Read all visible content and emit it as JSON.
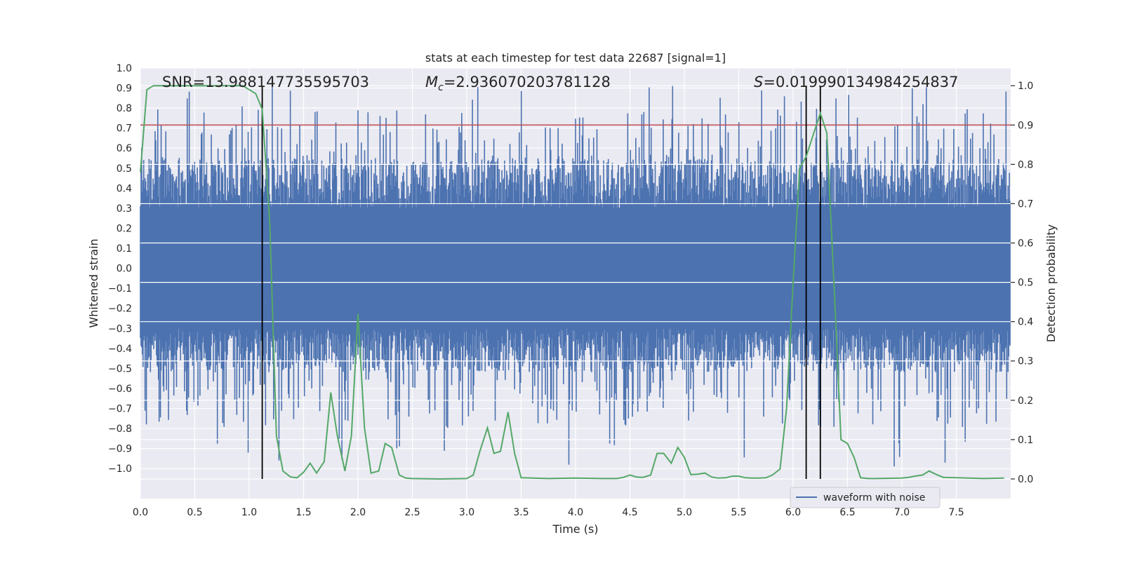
{
  "chart_data": {
    "type": "line",
    "title": "stats at each timestep for test data 22687 [signal=1]",
    "xlabel": "Time (s)",
    "ylabel_left": "Whitened strain",
    "ylabel_right": "Detection probability",
    "xlim": [
      0,
      8.0
    ],
    "ylim_left": [
      -1.15,
      1.0
    ],
    "ylim_right": [
      -0.05,
      1.045
    ],
    "x_ticks": [
      "0.0",
      "0.5",
      "1.0",
      "1.5",
      "2.0",
      "2.5",
      "3.0",
      "3.5",
      "4.0",
      "4.5",
      "5.0",
      "5.5",
      "6.0",
      "6.5",
      "7.0",
      "7.5"
    ],
    "y_left_ticks": [
      "1.0",
      "0.9",
      "0.8",
      "0.7",
      "0.6",
      "0.5",
      "0.4",
      "0.3",
      "0.2",
      "0.1",
      "0.0",
      "−0.1",
      "−0.2",
      "−0.3",
      "−0.4",
      "−0.5",
      "−0.6",
      "−0.7",
      "−0.8",
      "−0.9",
      "−1.0"
    ],
    "y_right_ticks": [
      "0.0",
      "0.1",
      "0.2",
      "0.3",
      "0.4",
      "0.5",
      "0.6",
      "0.7",
      "0.8",
      "0.9",
      "1.0"
    ],
    "annotations": {
      "snr": "SNR=13.988147735595703",
      "mc_symbol": "M",
      "mc_sub": "c",
      "mc_value": "=2.936070203781128",
      "s_symbol": "S",
      "s_value": "=0.019990134984254837"
    },
    "threshold": 0.9,
    "vertical_lines": [
      1.12,
      6.12,
      6.25
    ],
    "legend": [
      "waveform with noise"
    ],
    "series": [
      {
        "name": "waveform with noise",
        "color": "#4c72b0",
        "note": "dense noisy strain time series, amplitude envelope approx +/-0.5 with spikes to +/-1.0"
      },
      {
        "name": "detection probability",
        "color": "#55a868",
        "x": [
          0.0,
          0.06,
          0.12,
          0.19,
          0.25,
          0.31,
          0.38,
          0.44,
          0.5,
          0.56,
          0.62,
          0.69,
          0.75,
          0.81,
          0.88,
          0.94,
          1.0,
          1.06,
          1.12,
          1.19,
          1.25,
          1.31,
          1.38,
          1.44,
          1.5,
          1.56,
          1.62,
          1.69,
          1.75,
          1.81,
          1.88,
          1.94,
          2.0,
          2.06,
          2.12,
          2.19,
          2.25,
          2.31,
          2.38,
          2.44,
          2.5,
          2.75,
          3.0,
          3.06,
          3.12,
          3.19,
          3.25,
          3.31,
          3.38,
          3.44,
          3.5,
          3.75,
          4.0,
          4.25,
          4.38,
          4.44,
          4.5,
          4.56,
          4.62,
          4.69,
          4.75,
          4.81,
          4.88,
          4.94,
          5.0,
          5.06,
          5.12,
          5.19,
          5.25,
          5.31,
          5.38,
          5.44,
          5.5,
          5.56,
          5.62,
          5.69,
          5.75,
          5.81,
          5.88,
          5.94,
          6.0,
          6.06,
          6.12,
          6.19,
          6.25,
          6.31,
          6.38,
          6.44,
          6.5,
          6.56,
          6.62,
          6.69,
          6.75,
          7.0,
          7.06,
          7.12,
          7.19,
          7.25,
          7.31,
          7.38,
          7.5,
          7.75,
          7.94
        ],
        "values": [
          0.78,
          0.99,
          1.0,
          1.0,
          1.0,
          1.0,
          1.0,
          1.0,
          1.0,
          1.0,
          1.0,
          1.0,
          1.0,
          1.0,
          1.0,
          1.0,
          0.99,
          0.98,
          0.94,
          0.65,
          0.11,
          0.02,
          0.005,
          0.003,
          0.017,
          0.04,
          0.015,
          0.044,
          0.22,
          0.11,
          0.02,
          0.11,
          0.42,
          0.13,
          0.015,
          0.02,
          0.09,
          0.08,
          0.01,
          0.002,
          0.001,
          0.0,
          0.001,
          0.01,
          0.07,
          0.13,
          0.065,
          0.07,
          0.17,
          0.065,
          0.003,
          0.001,
          0.002,
          0.001,
          0.001,
          0.004,
          0.01,
          0.005,
          0.004,
          0.01,
          0.065,
          0.065,
          0.04,
          0.08,
          0.055,
          0.011,
          0.012,
          0.015,
          0.005,
          0.002,
          0.003,
          0.007,
          0.007,
          0.003,
          0.002,
          0.002,
          0.003,
          0.01,
          0.025,
          0.18,
          0.5,
          0.79,
          0.82,
          0.88,
          0.93,
          0.88,
          0.47,
          0.1,
          0.09,
          0.055,
          0.003,
          0.001,
          0.001,
          0.002,
          0.004,
          0.007,
          0.01,
          0.02,
          0.012,
          0.004,
          0.003,
          0.001,
          0.002
        ]
      }
    ]
  }
}
